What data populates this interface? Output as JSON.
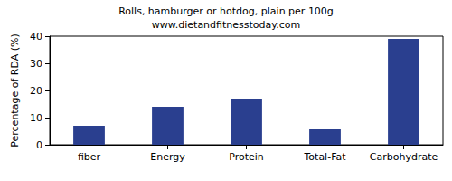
{
  "chart_data": {
    "type": "bar",
    "title": "Rolls, hamburger or hotdog, plain per 100g",
    "subtitle": "www.dietandfitnesstoday.com",
    "y_label": "Percentage of RDA (%)",
    "categories": [
      "fiber",
      "Energy",
      "Protein",
      "Total-Fat",
      "Carbohydrate"
    ],
    "values": [
      7,
      14,
      17,
      6,
      39
    ],
    "color": "#2a3f8f",
    "ylim": [
      0,
      40
    ],
    "yticks": [
      0,
      10,
      20,
      30,
      40
    ],
    "grid": false
  }
}
